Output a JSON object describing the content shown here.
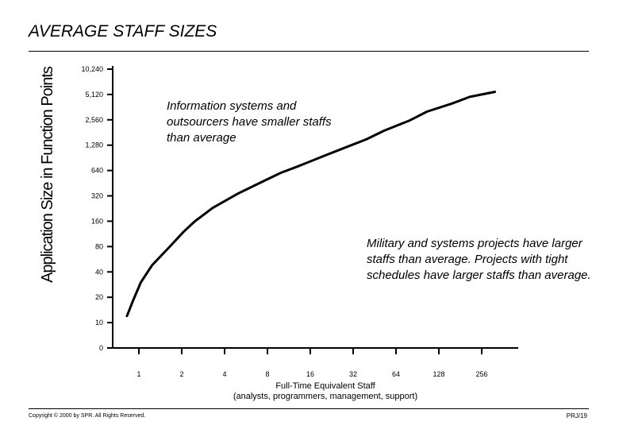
{
  "slide": {
    "title": "AVERAGE STAFF SIZES",
    "footer_left": "Copyright © 2000 by SPR. All Rights Reserved.",
    "footer_right": "PRJ/19"
  },
  "chart_data": {
    "type": "line",
    "xlabel": "Full-Time Equivalent Staff (analysts, programmers, management, support)",
    "xlabel_line1": "Full-Time Equivalent Staff",
    "xlabel_line2": "(analysts, programmers, management, support)",
    "ylabel": "Application Size in Function Points",
    "x_scale": "log2",
    "y_scale": "log2",
    "x_ticks": [
      "1",
      "2",
      "4",
      "8",
      "16",
      "32",
      "64",
      "128",
      "256"
    ],
    "y_ticks": [
      "0",
      "10",
      "20",
      "40",
      "80",
      "160",
      "320",
      "640",
      "1,280",
      "2,560",
      "5,120",
      "10,240"
    ],
    "grid": false,
    "series": [
      {
        "x": [
          1,
          1.1,
          1.25,
          1.5,
          2,
          2.5,
          3,
          4,
          6,
          8,
          12,
          16,
          24,
          32,
          48,
          64,
          96,
          128,
          192,
          256,
          384
        ],
        "y": [
          12,
          18,
          30,
          48,
          80,
          120,
          160,
          230,
          340,
          430,
          600,
          720,
          950,
          1150,
          1500,
          1900,
          2500,
          3200,
          4000,
          4800,
          5500
        ]
      }
    ],
    "annotations": [
      {
        "text": "Information systems and outsourcers have smaller staffs than average",
        "position": "upper-middle"
      },
      {
        "text": "Military and systems projects have larger staffs than average. Projects with tight schedules have larger staffs than average.",
        "position": "lower-right"
      }
    ]
  }
}
